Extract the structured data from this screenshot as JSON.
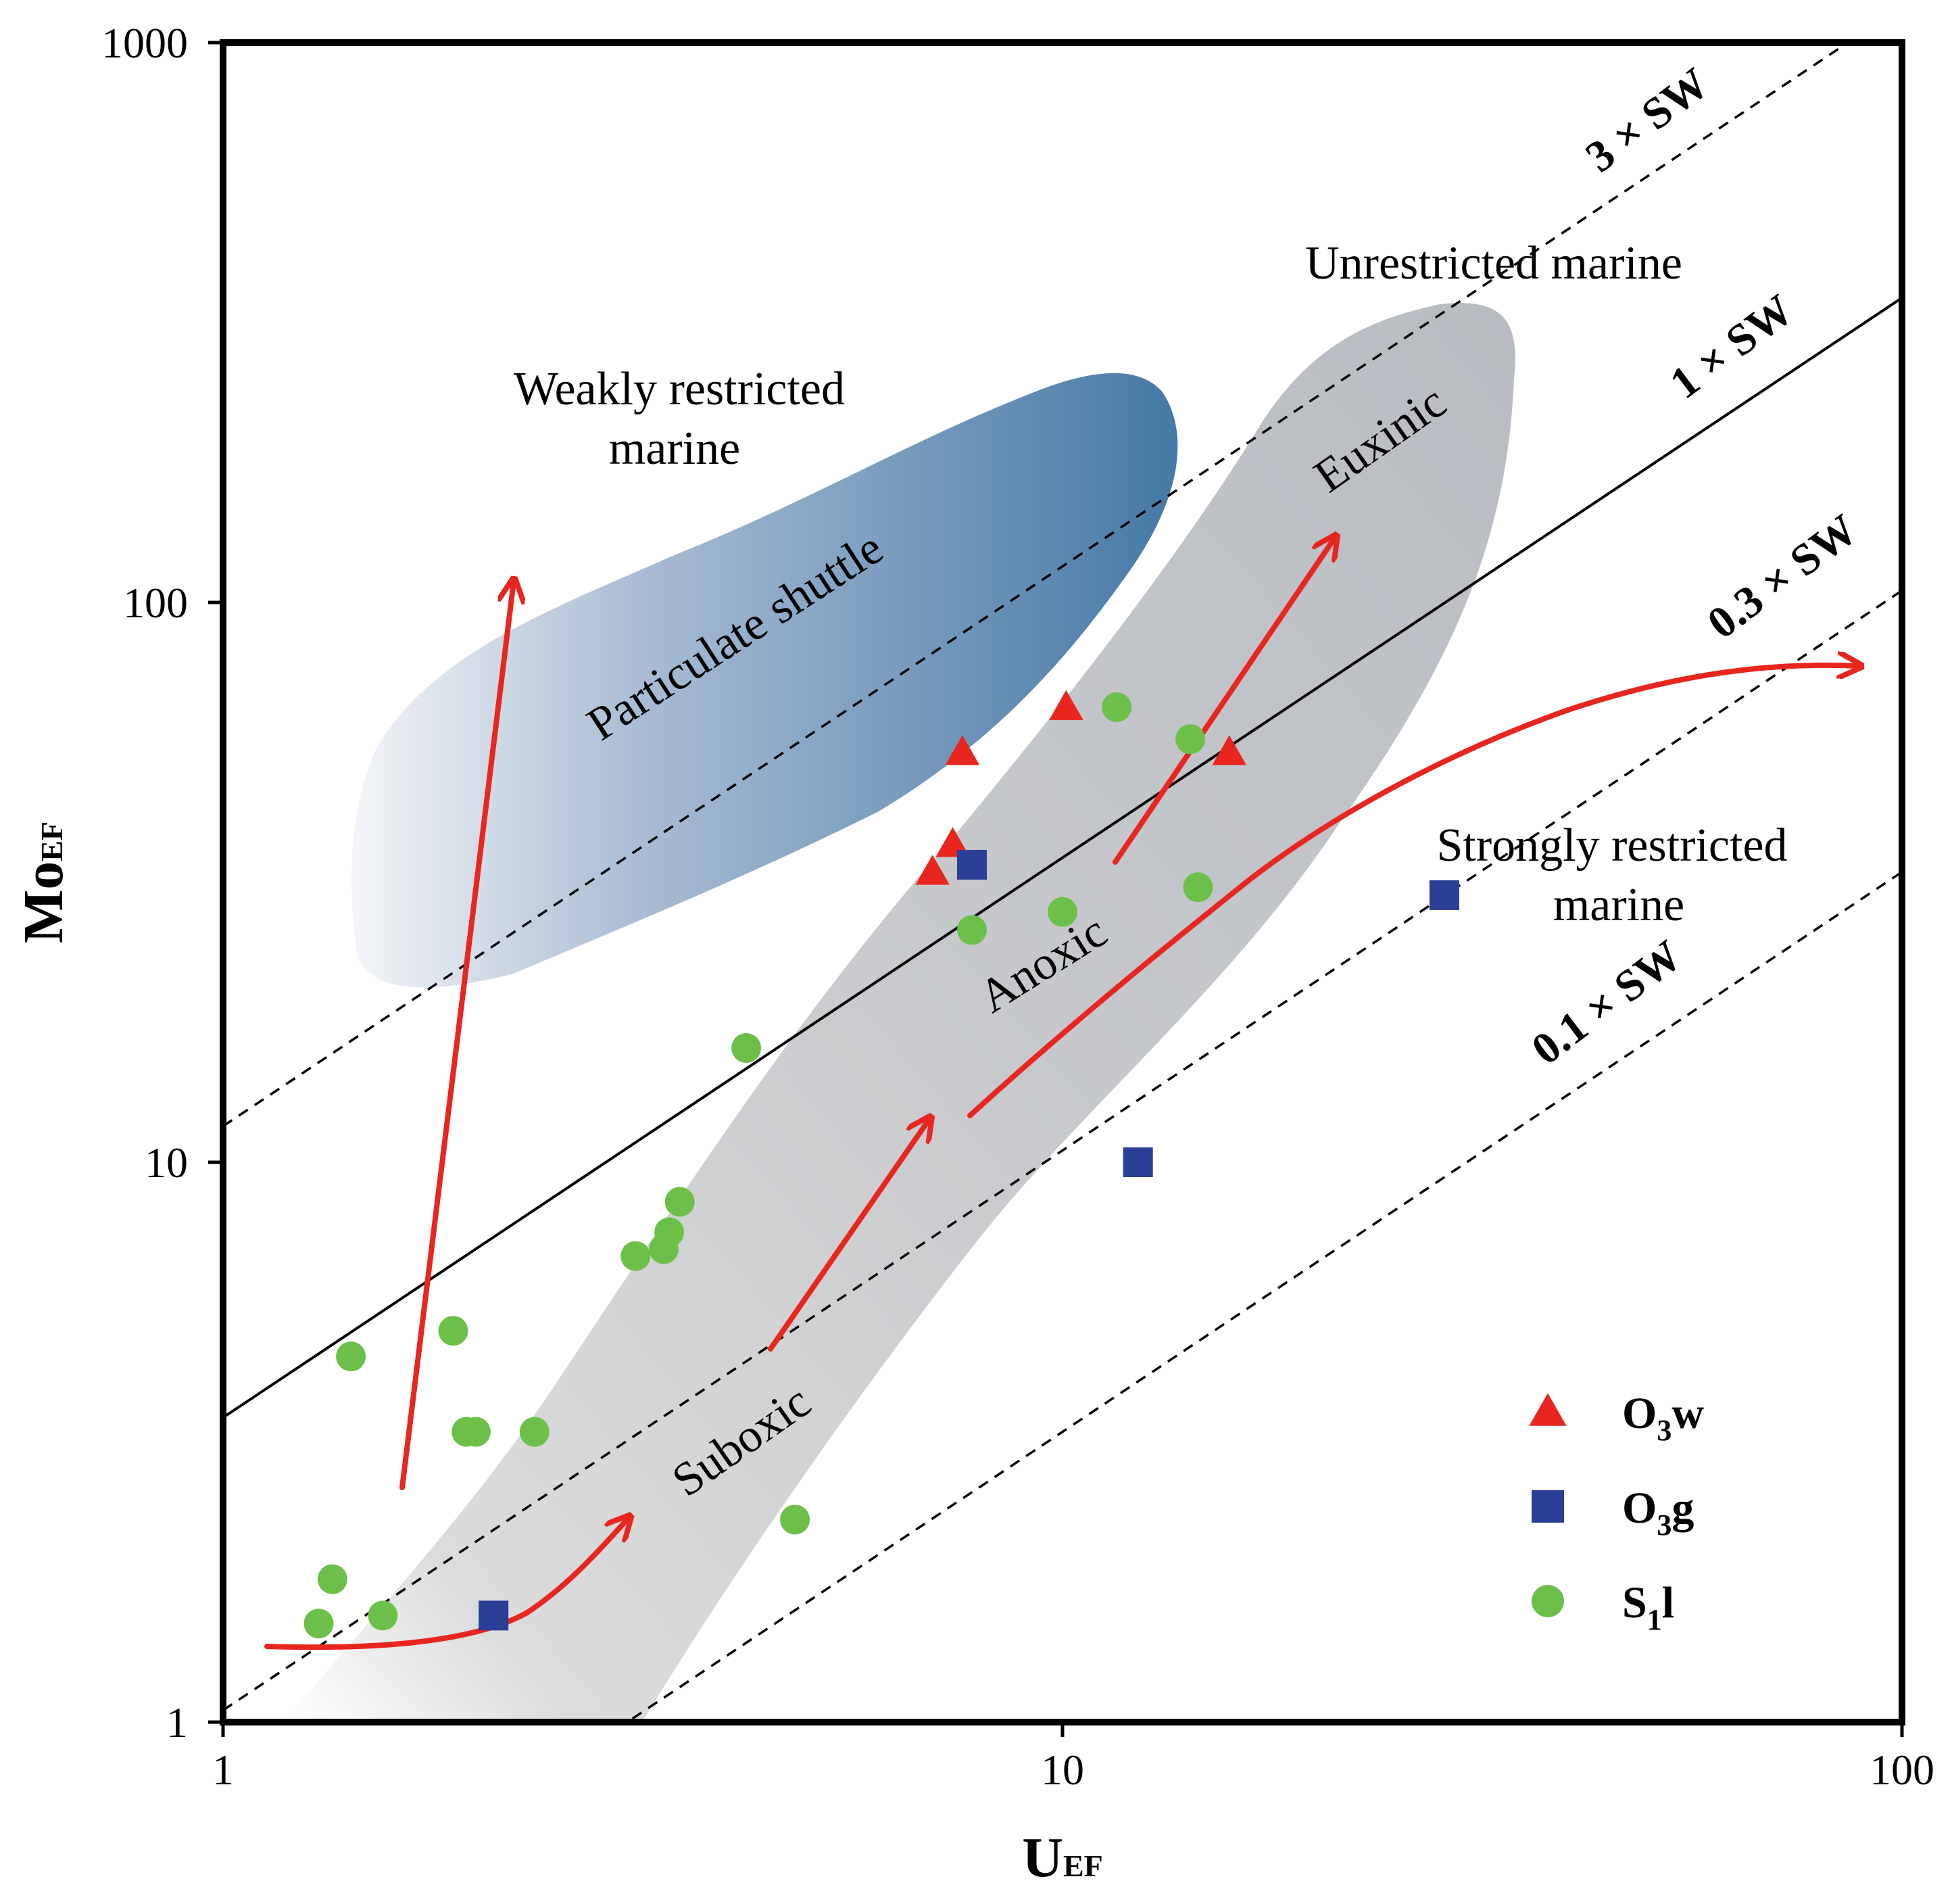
{
  "chart_data": {
    "type": "scatter",
    "title": "",
    "xlabel": "U",
    "xlabel_sub": "EF",
    "ylabel": "Mo",
    "ylabel_sub": "EF",
    "x_scale": "log",
    "y_scale": "log",
    "xlim": [
      1,
      100
    ],
    "ylim": [
      1,
      1000
    ],
    "x_ticks": [
      "1",
      "10",
      "100"
    ],
    "y_ticks": [
      "1",
      "10",
      "100",
      "1000"
    ],
    "grid": false,
    "reference_lines": [
      {
        "name": "3 × SW",
        "label": "3 × SW",
        "ratio": 11.6,
        "style": "dashed"
      },
      {
        "name": "1 × SW",
        "label": "1 × SW",
        "ratio": 3.5,
        "style": "solid"
      },
      {
        "name": "0.3 × SW",
        "label": "0.3 × SW",
        "ratio": 1.05,
        "style": "dashed"
      },
      {
        "name": "0.1 × SW",
        "label": "0.1 × SW",
        "ratio": 0.33,
        "style": "dashed"
      }
    ],
    "region_labels": {
      "unrestricted": "Unrestricted marine",
      "weakly_line1": "Weakly restricted",
      "weakly_line2": "marine",
      "particulate": "Particulate shuttle",
      "euxinic": "Euxinic",
      "anoxic": "Anoxic",
      "suboxic": "Suboxic",
      "strongly_line1": "Strongly restricted",
      "strongly_line2": "marine"
    },
    "series": [
      {
        "name": "O3w",
        "label_main": "O",
        "label_sub": "3",
        "label_end": "w",
        "marker": "triangle",
        "color": "#e8261f",
        "x": [
          7.0,
          7.4,
          7.6,
          10.1,
          15.8
        ],
        "y": [
          33,
          37,
          54,
          65,
          54
        ]
      },
      {
        "name": "O3g",
        "label_main": "O",
        "label_sub": "3",
        "label_end": "g",
        "marker": "square",
        "color": "#2b3f97",
        "x": [
          2.1,
          7.8,
          12.3,
          28.5
        ],
        "y": [
          1.55,
          34,
          10,
          30
        ]
      },
      {
        "name": "S1l",
        "label_main": "S",
        "label_sub": "1",
        "label_end": "l",
        "marker": "circle",
        "color": "#6cc04a",
        "x": [
          1.35,
          1.42,
          1.3,
          1.55,
          1.95,
          2.0,
          1.88,
          2.35,
          3.1,
          3.35,
          3.4,
          3.5,
          4.2,
          4.8,
          7.8,
          10.0,
          11.6,
          14.2,
          14.5
        ],
        "y": [
          1.8,
          4.5,
          1.5,
          1.55,
          3.3,
          3.3,
          5.0,
          3.3,
          6.8,
          7.0,
          7.5,
          8.5,
          16,
          2.3,
          26,
          28,
          65,
          57,
          31
        ]
      }
    ],
    "legend": {
      "position": "bottom-right",
      "entries": [
        "O3w",
        "O3g",
        "S1l"
      ]
    }
  }
}
